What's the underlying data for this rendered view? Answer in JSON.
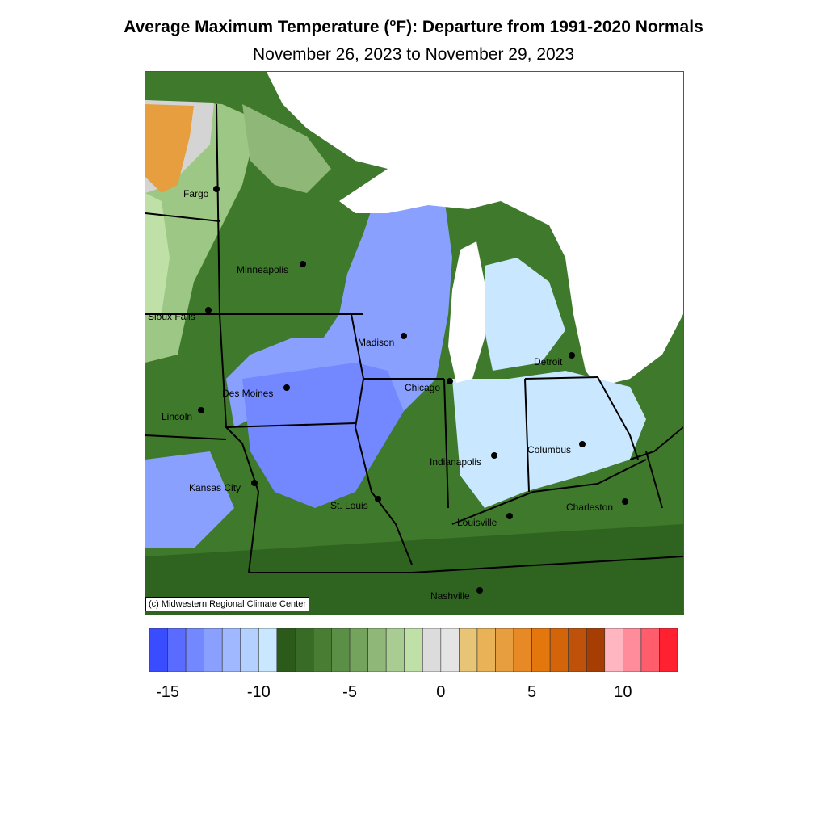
{
  "header": {
    "title_prefix": "Average Maximum Temperature (",
    "title_degree": "o",
    "title_suffix": "F): Departure from 1991-2020 Normals",
    "subtitle": "November 26, 2023 to November 29, 2023"
  },
  "map": {
    "cities": [
      {
        "id": "fargo",
        "name": "Fargo"
      },
      {
        "id": "minneapolis",
        "name": "Minneapolis"
      },
      {
        "id": "sioux-falls",
        "name": "Sioux Falls"
      },
      {
        "id": "madison",
        "name": "Madison"
      },
      {
        "id": "detroit",
        "name": "Detroit"
      },
      {
        "id": "chicago",
        "name": "Chicago"
      },
      {
        "id": "des-moines",
        "name": "Des Moines"
      },
      {
        "id": "lincoln",
        "name": "Lincoln"
      },
      {
        "id": "columbus",
        "name": "Columbus"
      },
      {
        "id": "indianapolis",
        "name": "Indianapolis"
      },
      {
        "id": "kansas-city",
        "name": "Kansas City"
      },
      {
        "id": "st-louis",
        "name": "St. Louis"
      },
      {
        "id": "charleston",
        "name": "Charleston"
      },
      {
        "id": "louisville",
        "name": "Louisville"
      },
      {
        "id": "nashville",
        "name": "Nashville"
      }
    ],
    "copyright": "(c) Midwestern Regional Climate Center"
  },
  "legend": {
    "colors": [
      "#3a4cff",
      "#5a6cff",
      "#7388ff",
      "#8aa0ff",
      "#9fb8ff",
      "#b4d0ff",
      "#c9e8ff",
      "#2b5a1a",
      "#386b25",
      "#487d33",
      "#5a8f45",
      "#74a35e",
      "#8fb878",
      "#a8cc92",
      "#bfe0a6",
      "#dcdcdc",
      "#e4e4e4",
      "#e7c476",
      "#e9b256",
      "#e79e3e",
      "#e78a26",
      "#e3760c",
      "#d4640a",
      "#bf520a",
      "#a63e04",
      "#ffb6c1",
      "#ff8c9a",
      "#ff5c6c",
      "#ff2030"
    ],
    "ticks": [
      {
        "value": "-15",
        "index": 1
      },
      {
        "value": "-10",
        "index": 6
      },
      {
        "value": "-5",
        "index": 11
      },
      {
        "value": "0",
        "index": 16
      },
      {
        "value": "5",
        "index": 21
      },
      {
        "value": "10",
        "index": 26
      }
    ]
  }
}
